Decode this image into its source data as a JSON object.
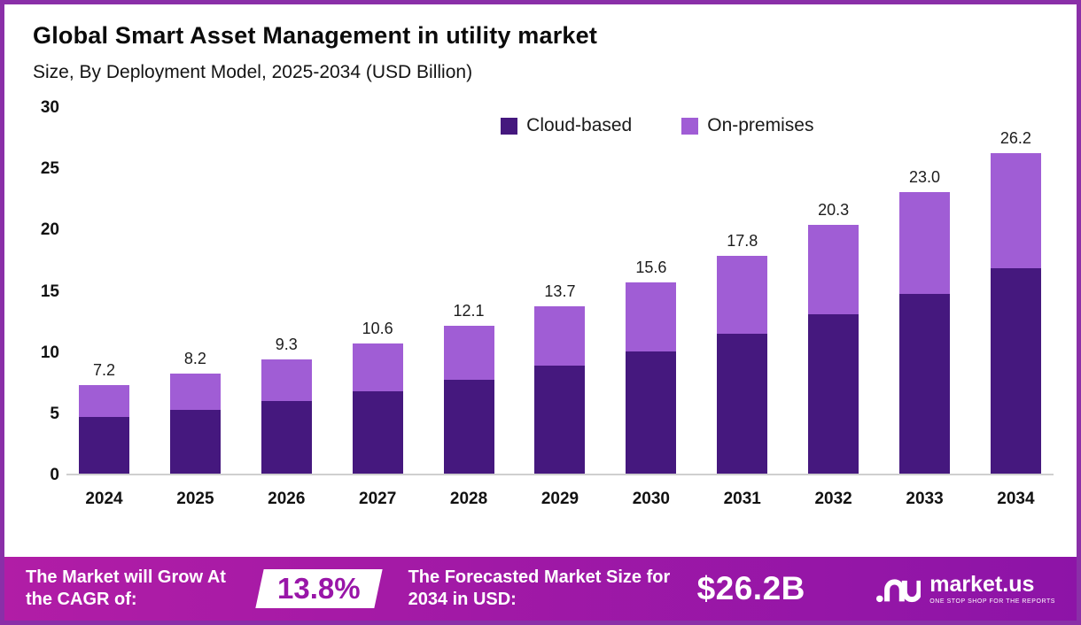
{
  "chart": {
    "title": "Global Smart Asset Management in utility market",
    "subtitle": "Size, By Deployment Model, 2025-2034 (USD Billion)"
  },
  "chart_data": {
    "type": "bar",
    "stacked": true,
    "title": "Global Smart Asset Management in utility market",
    "subtitle": "Size, By Deployment Model, 2025-2034 (USD Billion)",
    "xlabel": "",
    "ylabel": "USD Billion",
    "ylim": [
      0,
      30
    ],
    "yticks": [
      0,
      5,
      10,
      15,
      20,
      25,
      30
    ],
    "grid": false,
    "legend_position": "top-right",
    "categories": [
      "2024",
      "2025",
      "2026",
      "2027",
      "2028",
      "2029",
      "2030",
      "2031",
      "2032",
      "2033",
      "2034"
    ],
    "series": [
      {
        "name": "Cloud-based",
        "color": "#45187e",
        "values": [
          4.6,
          5.2,
          5.9,
          6.7,
          7.7,
          8.8,
          10.0,
          11.4,
          13.0,
          14.7,
          16.8
        ]
      },
      {
        "name": "On-premises",
        "color": "#a05dd5",
        "values": [
          2.6,
          3.0,
          3.4,
          3.9,
          4.4,
          4.9,
          5.6,
          6.4,
          7.3,
          8.3,
          9.4
        ]
      }
    ],
    "totals": [
      7.2,
      8.2,
      9.3,
      10.6,
      12.1,
      13.7,
      15.6,
      17.8,
      20.3,
      23.0,
      26.2
    ]
  },
  "banner": {
    "cagr_label": "The Market will Grow At the CAGR of:",
    "cagr_value": "13.8%",
    "forecast_label": "The Forecasted Market Size for 2034 in USD:",
    "forecast_value": "$26.2B",
    "brand": "market.us",
    "tagline": "ONE STOP SHOP FOR THE REPORTS"
  },
  "colors": {
    "cloud_based": "#45187e",
    "on_premises": "#a05dd5",
    "banner_start": "#b11da6",
    "banner_end": "#8d14a7",
    "frame_border": "#8a2fa8"
  }
}
